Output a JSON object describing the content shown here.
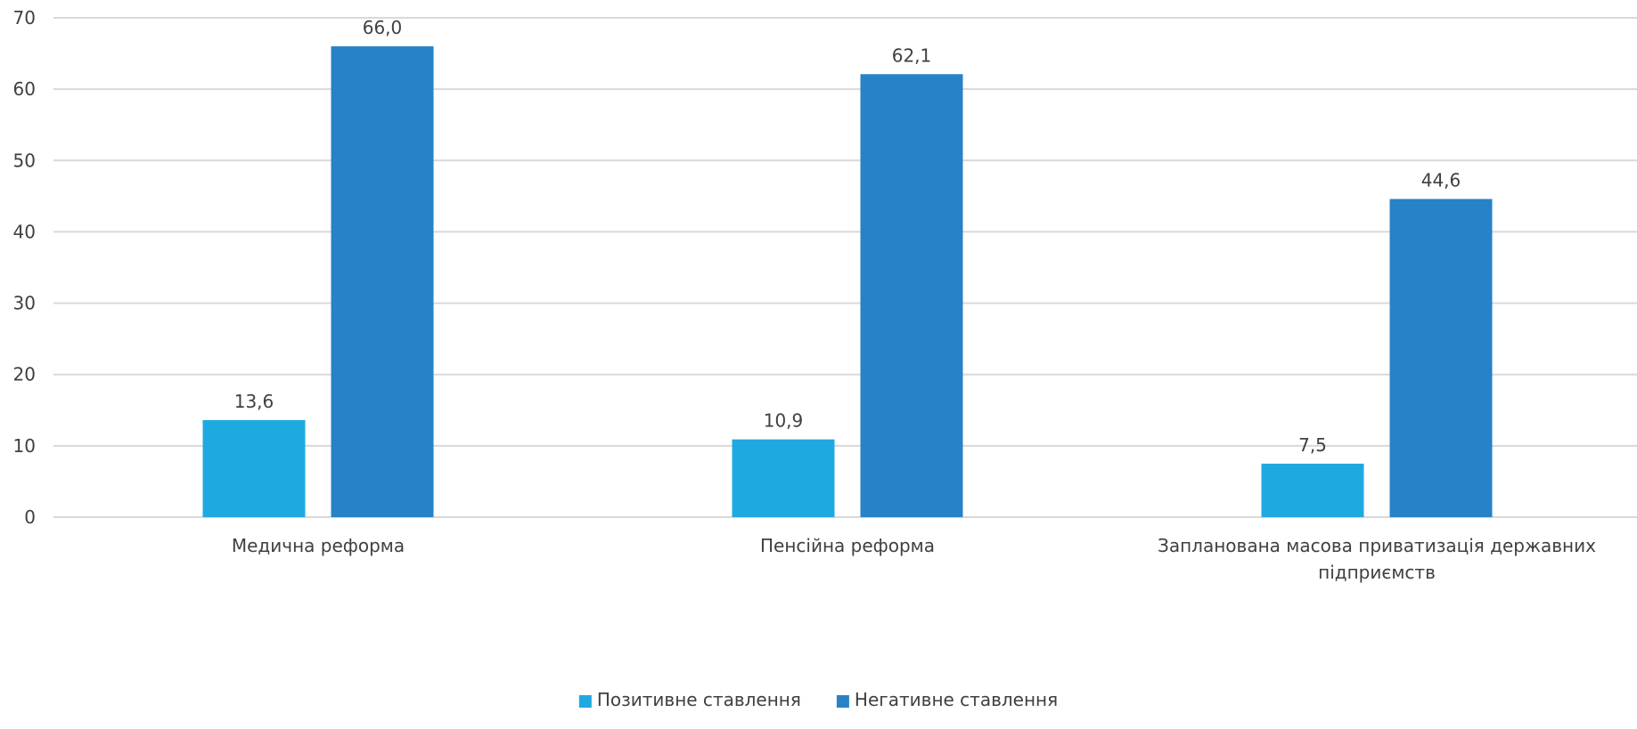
{
  "chart_data": {
    "type": "bar",
    "categories": [
      [
        "Медична реформа"
      ],
      [
        "Пенсійна реформа"
      ],
      [
        "Запланована масова приватизація державних",
        "підприємств"
      ]
    ],
    "series": [
      {
        "name": "Позитивне ставлення",
        "color": "#1fa9e1",
        "values": [
          13.6,
          10.9,
          7.5
        ],
        "labels": [
          "13,6",
          "10,9",
          "7,5"
        ]
      },
      {
        "name": "Негативне ставлення",
        "color": "#2782c7",
        "values": [
          66.0,
          62.1,
          44.6
        ],
        "labels": [
          "66,0",
          "62,1",
          "44,6"
        ]
      }
    ],
    "ylim": [
      0,
      70
    ],
    "yticks": [
      0,
      10,
      20,
      30,
      40,
      50,
      60,
      70
    ],
    "grid": true,
    "legend": "bottom",
    "title": "",
    "xlabel": "",
    "ylabel": ""
  }
}
